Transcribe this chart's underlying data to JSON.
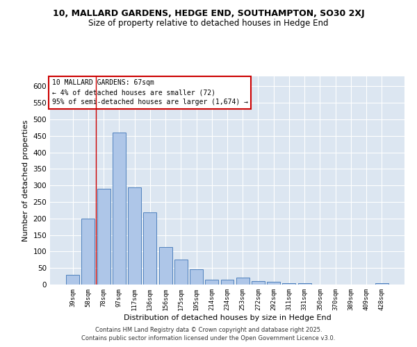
{
  "title_line1": "10, MALLARD GARDENS, HEDGE END, SOUTHAMPTON, SO30 2XJ",
  "title_line2": "Size of property relative to detached houses in Hedge End",
  "xlabel": "Distribution of detached houses by size in Hedge End",
  "ylabel": "Number of detached properties",
  "bar_labels": [
    "39sqm",
    "58sqm",
    "78sqm",
    "97sqm",
    "117sqm",
    "136sqm",
    "156sqm",
    "175sqm",
    "195sqm",
    "214sqm",
    "234sqm",
    "253sqm",
    "272sqm",
    "292sqm",
    "311sqm",
    "331sqm",
    "350sqm",
    "370sqm",
    "389sqm",
    "409sqm",
    "428sqm"
  ],
  "bar_values": [
    30,
    200,
    290,
    460,
    295,
    218,
    113,
    75,
    47,
    15,
    15,
    20,
    11,
    8,
    5,
    5,
    0,
    0,
    0,
    0,
    5
  ],
  "bar_color": "#aec6e8",
  "bar_edge_color": "#4f81bd",
  "background_color": "#dce6f1",
  "grid_color": "#ffffff",
  "ylim": [
    0,
    630
  ],
  "yticks": [
    0,
    50,
    100,
    150,
    200,
    250,
    300,
    350,
    400,
    450,
    500,
    550,
    600
  ],
  "red_line_x": 1.5,
  "annotation_text": "10 MALLARD GARDENS: 67sqm\n← 4% of detached houses are smaller (72)\n95% of semi-detached houses are larger (1,674) →",
  "annotation_box_color": "#ffffff",
  "annotation_edge_color": "#cc0000",
  "footer_line1": "Contains HM Land Registry data © Crown copyright and database right 2025.",
  "footer_line2": "Contains public sector information licensed under the Open Government Licence v3.0."
}
